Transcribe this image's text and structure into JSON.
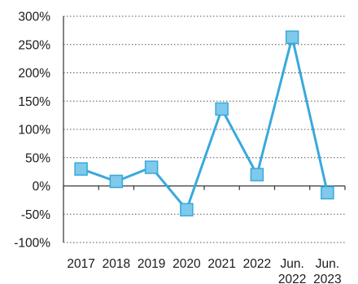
{
  "chart_data": {
    "type": "line",
    "categories": [
      "2017",
      "2018",
      "2019",
      "2020",
      "2021",
      "2022",
      "Jun.\n2022",
      "Jun.\n2023"
    ],
    "series": [
      {
        "values": [
          30,
          8,
          33,
          -42,
          136,
          20,
          263,
          -12
        ],
        "color": "#39a9dd",
        "marker": "square",
        "marker_fill": "#7ec9ec"
      }
    ],
    "yticks": [
      "300%",
      "250%",
      "200%",
      "150%",
      "100%",
      "50%",
      "0%",
      "-50%",
      "-100%"
    ],
    "ylim": [
      -100,
      300
    ],
    "grid": true,
    "title": "",
    "xlabel": "",
    "ylabel": ""
  }
}
